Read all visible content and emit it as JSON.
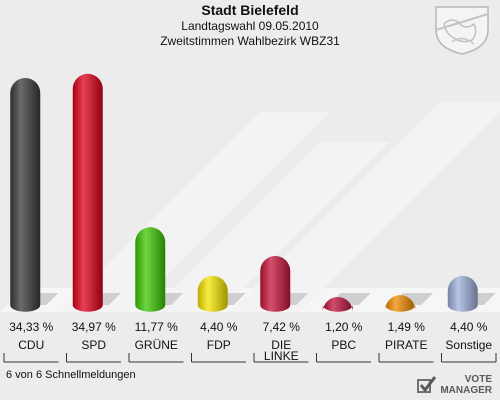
{
  "header": {
    "title": "Stadt Bielefeld",
    "subtitle1": "Landtagswahl 09.05.2010",
    "subtitle2": "Zweitstimmen Wahlbezirk WBZ31"
  },
  "footer": {
    "note": "6 von 6 Schnellmeldungen",
    "logo_line1": "VOTE",
    "logo_line2": "MANAGER"
  },
  "chart_data": {
    "type": "bar",
    "title": "Stadt Bielefeld",
    "categories": [
      "CDU",
      "SPD",
      "GRÜNE",
      "FDP",
      "DIE LINKE",
      "PBC",
      "PIRATE",
      "Sonstige"
    ],
    "category_lines": [
      [
        "CDU"
      ],
      [
        "SPD"
      ],
      [
        "GRÜNE"
      ],
      [
        "FDP"
      ],
      [
        "DIE",
        "LINKE"
      ],
      [
        "PBC"
      ],
      [
        "PIRATE"
      ],
      [
        "Sonstige"
      ]
    ],
    "values": [
      34.33,
      34.97,
      11.77,
      4.4,
      7.42,
      1.2,
      1.49,
      4.4
    ],
    "value_labels": [
      "34,33 %",
      "34,97 %",
      "11,77 %",
      "4,40 %",
      "7,42 %",
      "1,20 %",
      "1,49 %",
      "4,40 %"
    ],
    "colors": [
      "#3a3a3a",
      "#e0001a",
      "#3cc800",
      "#f5e600",
      "#c8143c",
      "#c0103c",
      "#f08a00",
      "#a0b0dc"
    ],
    "ylim": [
      0,
      36
    ],
    "xlabel": "",
    "ylabel": ""
  }
}
